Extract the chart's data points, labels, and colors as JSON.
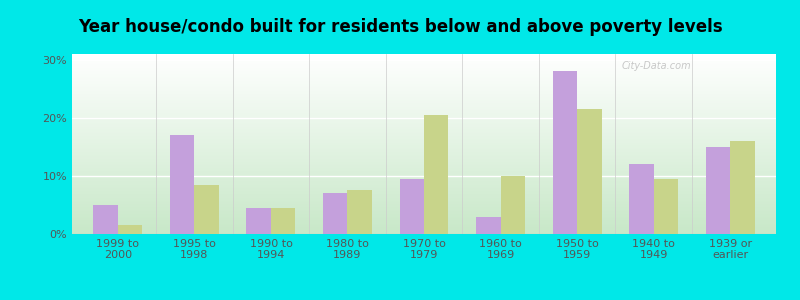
{
  "title": "Year house/condo built for residents below and above poverty levels",
  "categories": [
    "1999 to\n2000",
    "1995 to\n1998",
    "1990 to\n1994",
    "1980 to\n1989",
    "1970 to\n1979",
    "1960 to\n1969",
    "1950 to\n1959",
    "1940 to\n1949",
    "1939 or\nearlier"
  ],
  "below_poverty": [
    5.0,
    17.0,
    4.5,
    7.0,
    9.5,
    3.0,
    28.0,
    12.0,
    15.0
  ],
  "above_poverty": [
    1.5,
    8.5,
    4.5,
    7.5,
    20.5,
    10.0,
    21.5,
    9.5,
    16.0
  ],
  "below_color": "#c4a0dc",
  "above_color": "#c8d48a",
  "background_outer": "#00e8e8",
  "yticks": [
    0,
    10,
    20,
    30
  ],
  "ylim": [
    0,
    31
  ],
  "title_fontsize": 12,
  "tick_fontsize": 8,
  "watermark": "City-Data.com"
}
